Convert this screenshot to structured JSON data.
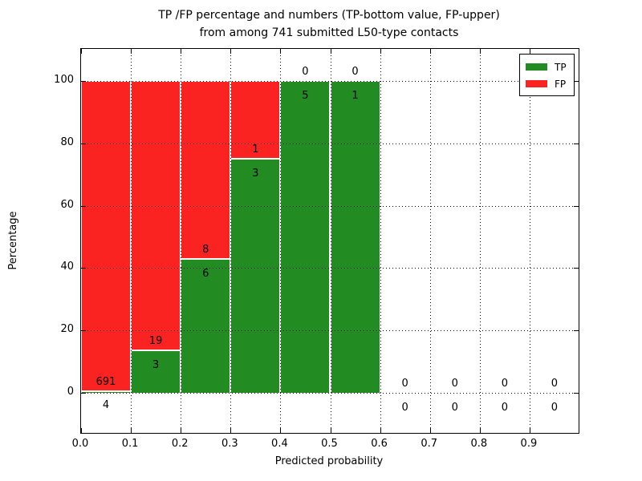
{
  "title": {
    "line1": "TP /FP percentage and numbers (TP-bottom value, FP-upper)",
    "line2": "from among 741 submitted L50-type contacts"
  },
  "axes": {
    "xlabel": "Predicted probability",
    "ylabel": "Percentage",
    "x_tick_labels": [
      "0.0",
      "0.1",
      "0.2",
      "0.3",
      "0.4",
      "0.5",
      "0.6",
      "0.7",
      "0.8",
      "0.9"
    ],
    "y_tick_labels": [
      "0",
      "20",
      "40",
      "60",
      "80",
      "100"
    ],
    "y_tick_values": [
      0,
      20,
      40,
      60,
      80,
      100
    ]
  },
  "legend": {
    "items": [
      {
        "label": "TP",
        "color": "#228b22"
      },
      {
        "label": "FP",
        "color": "#fb2222"
      }
    ]
  },
  "chart_data": {
    "type": "bar",
    "stacked": true,
    "title": "TP /FP percentage and numbers (TP-bottom value, FP-upper) from among 741 submitted L50-type contacts",
    "xlabel": "Predicted probability",
    "ylabel": "Percentage",
    "total_contacts": 741,
    "bin_edges": [
      0.0,
      0.1,
      0.2,
      0.3,
      0.4,
      0.5,
      0.6,
      0.7,
      0.8,
      0.9,
      1.0
    ],
    "series": [
      {
        "name": "TP",
        "color": "#228b22",
        "values": [
          4,
          3,
          6,
          3,
          5,
          1,
          0,
          0,
          0,
          0
        ]
      },
      {
        "name": "FP",
        "color": "#fb2222",
        "values": [
          691,
          19,
          8,
          1,
          0,
          0,
          0,
          0,
          0,
          0
        ]
      }
    ],
    "tp_percent_of_bin": [
      0.58,
      13.64,
      42.86,
      75.0,
      100.0,
      100.0,
      null,
      null,
      null,
      null
    ],
    "ylim": [
      -12.9,
      110.3
    ],
    "xlim": [
      0.0,
      1.0
    ],
    "grid": "dotted",
    "legend_position": "upper right"
  }
}
